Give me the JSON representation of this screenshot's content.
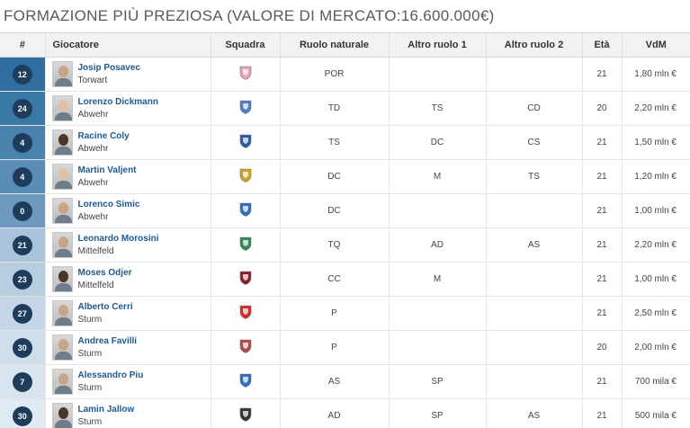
{
  "page_title": "FORMAZIONE PIÙ PREZIOSA (VALORE DI MERCATO:16.600.000€)",
  "columns": [
    "#",
    "Giocatore",
    "Squadra",
    "Ruolo naturale",
    "Altro ruolo 1",
    "Altro ruolo 2",
    "Età",
    "VdM"
  ],
  "row_colors": [
    "#2f6e9f",
    "#3a78a7",
    "#4a82ae",
    "#5a8db5",
    "#6c99bd",
    "#a9c4da",
    "#b7cde0",
    "#c5d7e6",
    "#cfdeeb",
    "#d8e4ef",
    "#e0eaf3"
  ],
  "players": [
    {
      "number": "12",
      "name": "Josip Posavec",
      "role": "Torwart",
      "club_icon": "palermo-crest-icon",
      "club_color": "#e8a0b4",
      "natural": "POR",
      "alt1": "",
      "alt2": "",
      "age": "21",
      "value": "1,80 mln €"
    },
    {
      "number": "24",
      "name": "Lorenzo Dickmann",
      "role": "Abwehr",
      "club_icon": "novara-crest-icon",
      "club_color": "#4a7cc4",
      "natural": "TD",
      "alt1": "TS",
      "alt2": "CD",
      "age": "20",
      "value": "2,20 mln €"
    },
    {
      "number": "4",
      "name": "Racine Coly",
      "role": "Abwehr",
      "club_icon": "brescia-crest-icon",
      "club_color": "#2a5aa8",
      "natural": "TS",
      "alt1": "DC",
      "alt2": "CS",
      "age": "21",
      "value": "1,50 mln €"
    },
    {
      "number": "4",
      "name": "Martin Valjent",
      "role": "Abwehr",
      "club_icon": "ternana-crest-icon",
      "club_color": "#c9a227",
      "natural": "DC",
      "alt1": "M",
      "alt2": "TS",
      "age": "21",
      "value": "1,20 mln €"
    },
    {
      "number": "0",
      "name": "Lorenco Simic",
      "role": "Abwehr",
      "club_icon": "empoli-crest-icon",
      "club_color": "#2d6ec0",
      "natural": "DC",
      "alt1": "",
      "alt2": "",
      "age": "21",
      "value": "1,00 mln €"
    },
    {
      "number": "21",
      "name": "Leonardo Morosini",
      "role": "Mittelfeld",
      "club_icon": "avellino-crest-icon",
      "club_color": "#2e8b57",
      "natural": "TQ",
      "alt1": "AD",
      "alt2": "AS",
      "age": "21",
      "value": "2,20 mln €"
    },
    {
      "number": "23",
      "name": "Moses Odjer",
      "role": "Mittelfeld",
      "club_icon": "salernitana-crest-icon",
      "club_color": "#8b1e2d",
      "natural": "CC",
      "alt1": "M",
      "alt2": "",
      "age": "21",
      "value": "1,00 mln €"
    },
    {
      "number": "27",
      "name": "Alberto Cerri",
      "role": "Sturm",
      "club_icon": "perugia-crest-icon",
      "club_color": "#d42a2a",
      "natural": "P",
      "alt1": "",
      "alt2": "",
      "age": "21",
      "value": "2,50 mln €"
    },
    {
      "number": "30",
      "name": "Andrea Favilli",
      "role": "Sturm",
      "club_icon": "ascoli-crest-icon",
      "club_color": "#b04a4a",
      "natural": "P",
      "alt1": "",
      "alt2": "",
      "age": "20",
      "value": "2,00 mln €"
    },
    {
      "number": "7",
      "name": "Alessandro Piu",
      "role": "Sturm",
      "club_icon": "empoli-crest-icon",
      "club_color": "#2d6ec0",
      "natural": "AS",
      "alt1": "SP",
      "alt2": "",
      "age": "21",
      "value": "700 mila €"
    },
    {
      "number": "30",
      "name": "Lamin Jallow",
      "role": "Sturm",
      "club_icon": "cesena-crest-icon",
      "club_color": "#333333",
      "natural": "AD",
      "alt1": "SP",
      "alt2": "AS",
      "age": "21",
      "value": "500 mila €"
    }
  ]
}
